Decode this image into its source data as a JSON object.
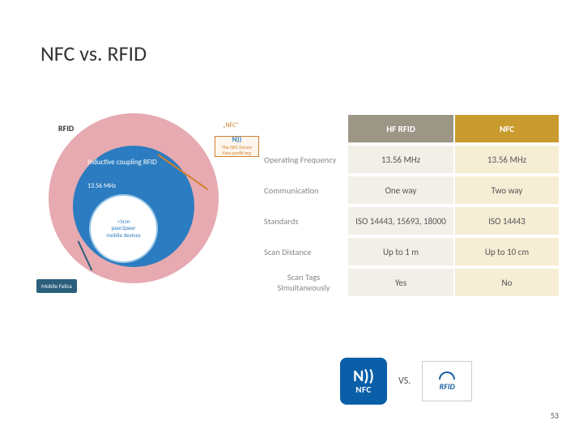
{
  "title": "NFC vs. RFID",
  "venn": {
    "outer_color": "#e6aab0",
    "mid_color": "#2b7cc0",
    "inner_border": "#9dc9e8",
    "label_outer": "RFID",
    "label_mid": "Inductive coupling RFID",
    "label_freq": "13.56 MHz",
    "inner_line1": "<5cm",
    "inner_line2": "peer2peer",
    "inner_line3": "mobile devices",
    "nfc_callout": "„NFC\"",
    "forum_logo": "N))",
    "forum_line1": "The NFC Forum",
    "forum_line2": "Non-profit org",
    "felica_label": "Mobile Felica"
  },
  "table": {
    "header_rfid": "HF RFID",
    "header_nfc": "NFC",
    "header_rfid_bg": "#9c9687",
    "header_nfc_bg": "#c99a2e",
    "col_rfid_bg": "#f2efe8",
    "col_nfc_bg": "#f6edd5",
    "rows": [
      {
        "label": "Operating Frequency",
        "rfid": "13.56 MHz",
        "nfc": "13.56 MHz"
      },
      {
        "label": "Communication",
        "rfid": "One way",
        "nfc": "Two way"
      },
      {
        "label": "Standards",
        "rfid": "ISO 14443, 15693, 18000",
        "nfc": "ISO 14443"
      },
      {
        "label": "Scan Distance",
        "rfid": "Up to 1 m",
        "nfc": "Up to 10 cm"
      },
      {
        "label": "Scan Tags Simultaneously",
        "rfid": "Yes",
        "nfc": "No"
      }
    ]
  },
  "badges": {
    "nfc_wave": "N))",
    "nfc_text": "NFC",
    "nfc_bg": "#0a5fa8",
    "vs": "VS.",
    "rfid_text": "RFID",
    "rfid_color": "#1a5fa0"
  },
  "page_number": "53"
}
